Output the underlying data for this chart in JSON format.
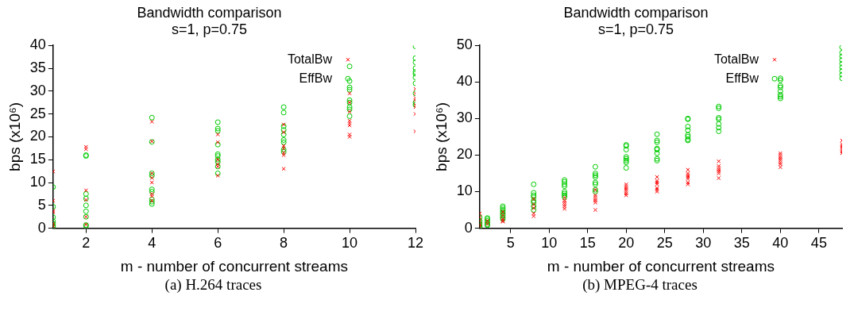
{
  "chart_data": [
    {
      "type": "scatter",
      "title": "Bandwidth comparison",
      "subtitle": "s=1, p=0.75",
      "xlabel": "m - number of concurrent streams",
      "ylabel": "bps (x10⁶)",
      "xlim": [
        1,
        12
      ],
      "xticks": [
        2,
        4,
        6,
        8,
        10,
        12
      ],
      "ylim": [
        0,
        40
      ],
      "yticks": [
        0,
        5,
        10,
        15,
        20,
        25,
        30,
        35,
        40
      ],
      "grid": false,
      "legend": "top right",
      "annotations": [
        "(a) H.264 traces"
      ],
      "series": [
        {
          "name": "TotalBw",
          "color": "#ff0000",
          "marker": "cross",
          "x": [
            1,
            1,
            1,
            1,
            1,
            1,
            2,
            2,
            2,
            2,
            2,
            2,
            4,
            4,
            4,
            4,
            4,
            4,
            4,
            4,
            6,
            6,
            6,
            6,
            6,
            6,
            8,
            8,
            8,
            8,
            8,
            8,
            8,
            10,
            10,
            10,
            10,
            10,
            10,
            10,
            10,
            12,
            12,
            12,
            12,
            12,
            12,
            12,
            12
          ],
          "values": [
            12.4,
            6,
            3.8,
            3.5,
            1,
            0.5,
            17.8,
            17.3,
            8.3,
            6.2,
            2.5,
            0.8,
            23.3,
            19,
            12,
            11,
            10,
            7.5,
            7,
            6,
            20.5,
            18.8,
            15,
            14,
            13.5,
            11.5,
            22.7,
            21,
            18,
            17.5,
            16.5,
            16,
            13,
            29.5,
            27.5,
            25.5,
            23.5,
            23,
            22.5,
            20.5,
            20,
            30.5,
            29.5,
            28.5,
            28,
            27,
            26.5,
            25,
            21.2
          ]
        },
        {
          "name": "EffBw",
          "color": "#00cc00",
          "marker": "circle",
          "x": [
            1,
            1,
            1,
            1,
            1,
            1,
            1,
            2,
            2,
            2,
            2,
            2,
            2,
            2,
            2,
            2,
            4,
            4,
            4,
            4,
            4,
            4,
            4,
            4,
            4,
            6,
            6,
            6,
            6,
            6,
            6,
            6,
            6,
            6,
            6,
            8,
            8,
            8,
            8,
            8,
            8,
            8,
            8,
            8,
            10,
            10,
            10,
            10,
            10,
            10,
            10,
            10,
            10,
            12,
            12,
            12,
            12,
            12,
            12,
            12,
            12,
            12,
            12,
            12
          ],
          "values": [
            9,
            4.7,
            2.4,
            1.5,
            1,
            0.5,
            0.2,
            15.8,
            16,
            7.5,
            6.5,
            5,
            3.7,
            2.5,
            0.7,
            0.5,
            24.2,
            18.9,
            12,
            11.5,
            8.5,
            8,
            6.3,
            5.8,
            5.3,
            23.2,
            21.8,
            21.3,
            18.3,
            16.2,
            15.8,
            15,
            14.5,
            13.5,
            12,
            26.5,
            25.3,
            22.3,
            21.5,
            20.5,
            19.3,
            18.8,
            17.2,
            16.7,
            35.4,
            32.2,
            30.8,
            30.3,
            28,
            27.5,
            26.5,
            26,
            24.5,
            39.8,
            37.2,
            36.3,
            35,
            34.2,
            33.8,
            33,
            31.7,
            29.5,
            27.5,
            27
          ]
        }
      ]
    },
    {
      "type": "scatter",
      "title": "Bandwidth comparison",
      "subtitle": "s=1, p=0.75",
      "xlabel": "m - number of concurrent streams",
      "ylabel": "bps (x10⁶)",
      "xlim": [
        1,
        48
      ],
      "xticks": [
        5,
        10,
        15,
        20,
        25,
        30,
        35,
        40,
        45
      ],
      "ylim": [
        0,
        50
      ],
      "yticks": [
        0,
        10,
        20,
        30,
        40,
        50
      ],
      "grid": false,
      "legend": "top right",
      "annotations": [
        "(b) MPEG-4 traces"
      ],
      "series": [
        {
          "name": "TotalBw",
          "color": "#ff0000",
          "marker": "cross",
          "x": [
            1,
            1,
            1,
            1,
            1,
            2,
            2,
            4,
            4,
            4,
            4,
            4,
            8,
            8,
            8,
            8,
            8,
            12,
            12,
            12,
            12,
            12,
            12,
            16,
            16,
            16,
            16,
            16,
            16,
            16,
            20,
            20,
            20,
            20,
            20,
            20,
            20,
            24,
            24,
            24,
            24,
            24,
            24,
            24,
            28,
            28,
            28,
            28,
            28,
            28,
            28,
            32,
            32,
            32,
            32,
            32,
            32,
            32,
            40,
            40,
            40,
            40,
            40,
            40,
            40,
            40,
            48,
            48,
            48,
            48,
            48,
            48,
            48
          ],
          "values": [
            4,
            3,
            2,
            1,
            0.5,
            2,
            1.2,
            4.5,
            3.5,
            2.5,
            2,
            1.8,
            8,
            6.5,
            5.5,
            4,
            3.3,
            8.3,
            7.5,
            7,
            6.5,
            6,
            5.3,
            10.5,
            9,
            8.5,
            8,
            7.5,
            7,
            5,
            12,
            11.5,
            11,
            10.5,
            10,
            9.5,
            9,
            14,
            13,
            12.5,
            12,
            11,
            10.5,
            10,
            16,
            15,
            14.5,
            14,
            13.5,
            12.5,
            12,
            18.3,
            17,
            16.5,
            16,
            15.5,
            15,
            13.7,
            20.5,
            20,
            19.5,
            19,
            18.5,
            18,
            17.5,
            16.7,
            24,
            23,
            22.5,
            22,
            21.5,
            21,
            20.5
          ]
        },
        {
          "name": "EffBw",
          "color": "#00cc00",
          "marker": "circle",
          "x": [
            1,
            1,
            1,
            1,
            1,
            1,
            2,
            2,
            2,
            2,
            2,
            2,
            4,
            4,
            4,
            4,
            4,
            4,
            4,
            4,
            8,
            8,
            8,
            8,
            8,
            8,
            8,
            8,
            12,
            12,
            12,
            12,
            12,
            12,
            12,
            12,
            16,
            16,
            16,
            16,
            16,
            16,
            16,
            16,
            20,
            20,
            20,
            20,
            20,
            20,
            20,
            20,
            24,
            24,
            24,
            24,
            24,
            24,
            24,
            24,
            28,
            28,
            28,
            28,
            28,
            28,
            28,
            28,
            32,
            32,
            32,
            32,
            32,
            32,
            32,
            40,
            40,
            40,
            40,
            40,
            40,
            40,
            40,
            48,
            48,
            48,
            48,
            48,
            48,
            48,
            48,
            48
          ],
          "values": [
            3,
            2,
            1.5,
            1,
            0.5,
            0.2,
            2.8,
            2.5,
            2,
            1.5,
            1,
            0.8,
            6,
            5.5,
            5,
            4.5,
            4,
            3.5,
            3,
            2.5,
            12,
            9.7,
            9,
            8.5,
            7.5,
            7,
            6,
            5,
            13.2,
            12.7,
            12,
            11.5,
            10,
            9.5,
            9,
            8.5,
            16.8,
            15,
            14.5,
            14,
            12.5,
            12,
            10.5,
            10,
            22.8,
            22.5,
            21.5,
            19.5,
            19,
            18.5,
            18,
            16.5,
            25.7,
            24,
            23.5,
            21.8,
            21.5,
            20.5,
            19,
            18.5,
            30,
            29.8,
            27.8,
            26.8,
            25.5,
            25,
            24.3,
            24,
            33.3,
            32.8,
            30.2,
            29.8,
            28.5,
            27.5,
            26.5,
            41,
            40.5,
            39,
            38.5,
            37.5,
            36.5,
            36,
            35.5,
            49.5,
            48,
            47,
            46,
            45,
            44,
            43,
            42,
            41
          ]
        }
      ]
    }
  ]
}
